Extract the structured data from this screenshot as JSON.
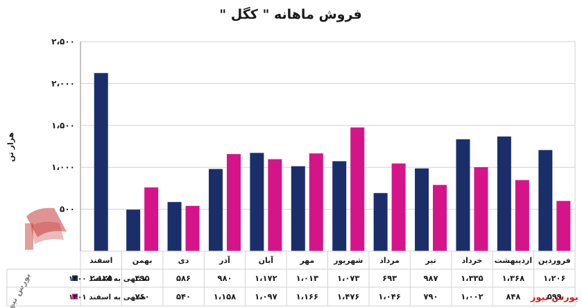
{
  "colors": {
    "series1": "#1a2f6a",
    "series2": "#d6148a",
    "grid": "#d0d0d0",
    "axis": "#8a8a8a",
    "brand": "#d7191e",
    "logo": "#c73b3b"
  },
  "brand": {
    "name": "بورس نیوز",
    "logo_text": "بورس نیوز"
  },
  "chart_data": {
    "type": "bar",
    "title": "فروش ماهانه \" کگل \"",
    "ylabel": "هزار تن",
    "ylim": [
      0,
      2500
    ],
    "yticks": [
      0,
      500,
      1000,
      1500,
      2000,
      2500
    ],
    "ytick_labels": [
      "",
      "۵۰۰",
      "۱،۰۰۰",
      "۱،۵۰۰",
      "۲،۰۰۰",
      "۲،۵۰۰"
    ],
    "grid": true,
    "legend": "table-bottom",
    "categories": [
      "فروردین",
      "اردیبهشت",
      "خرداد",
      "تیر",
      "مرداد",
      "شهریور",
      "مهر",
      "آبان",
      "آذر",
      "دی",
      "بهمن",
      "اسفند"
    ],
    "series": [
      {
        "name": "منتهی به اسفند ۱۴۰۰",
        "values": [
          1206,
          1368,
          1335,
          987,
          693,
          1073,
          1013,
          1172,
          980,
          586,
          495,
          2125
        ],
        "labels": [
          "۱،۲۰۶",
          "۱،۳۶۸",
          "۱،۳۳۵",
          "۹۸۷",
          "۶۹۳",
          "۱،۰۷۳",
          "۱،۰۱۳",
          "۱،۱۷۲",
          "۹۸۰",
          "۵۸۶",
          "۴۹۵",
          "۲،۱۲۵"
        ]
      },
      {
        "name": "منتهی به اسفند ۱۴۰۱",
        "values": [
          599,
          848,
          1002,
          790,
          1046,
          1476,
          1166,
          1097,
          1158,
          540,
          760,
          null
        ],
        "labels": [
          "۵۹۹",
          "۸۴۸",
          "۱،۰۰۲",
          "۷۹۰",
          "۱،۰۴۶",
          "۱،۴۷۶",
          "۱،۱۶۶",
          "۱،۰۹۷",
          "۱،۱۵۸",
          "۵۴۰",
          "۷۶۰",
          ""
        ]
      }
    ]
  }
}
